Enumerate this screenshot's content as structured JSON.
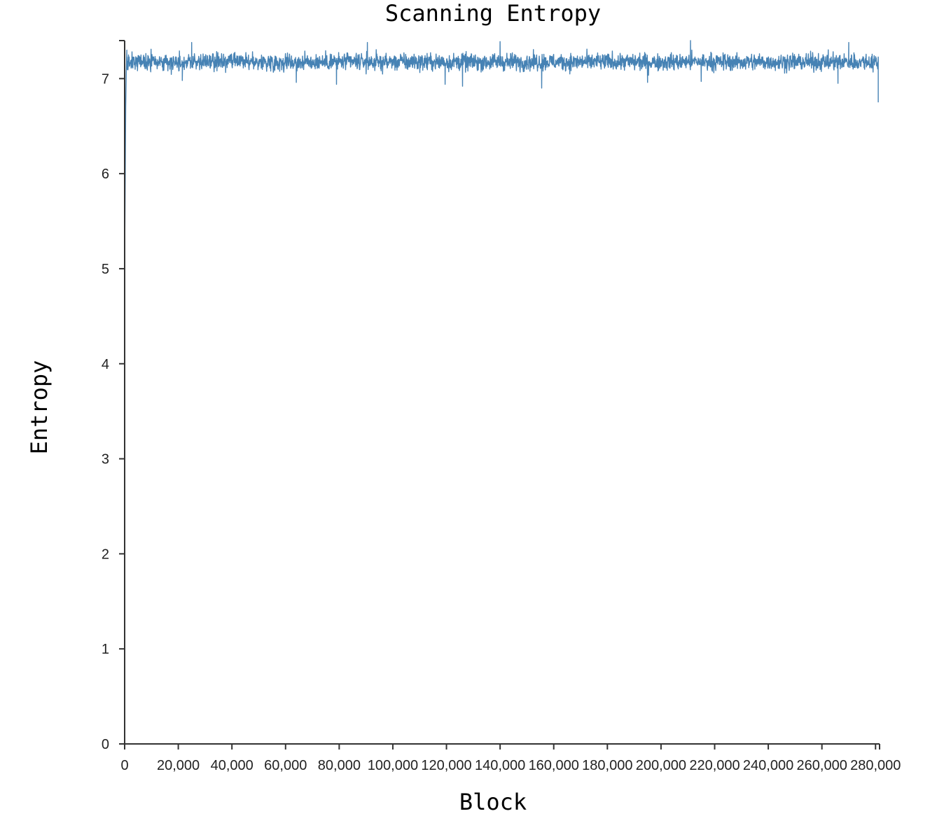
{
  "chart_data": {
    "type": "line",
    "title": "Scanning Entropy",
    "xlabel": "Block",
    "ylabel": "Entropy",
    "xlim": [
      0,
      281500
    ],
    "ylim": [
      0,
      7.4
    ],
    "x_ticks": [
      {
        "value": 0,
        "label": "0"
      },
      {
        "value": 20000,
        "label": "20,000"
      },
      {
        "value": 40000,
        "label": "40,000"
      },
      {
        "value": 60000,
        "label": "60,000"
      },
      {
        "value": 80000,
        "label": "80,000"
      },
      {
        "value": 100000,
        "label": "100,000"
      },
      {
        "value": 120000,
        "label": "120,000"
      },
      {
        "value": 140000,
        "label": "140,000"
      },
      {
        "value": 160000,
        "label": "160,000"
      },
      {
        "value": 180000,
        "label": "180,000"
      },
      {
        "value": 200000,
        "label": "200,000"
      },
      {
        "value": 220000,
        "label": "220,000"
      },
      {
        "value": 240000,
        "label": "240,000"
      },
      {
        "value": 260000,
        "label": "260,000"
      },
      {
        "value": 280000,
        "label": "280,000"
      }
    ],
    "y_ticks": [
      {
        "value": 0,
        "label": "0"
      },
      {
        "value": 1,
        "label": "1"
      },
      {
        "value": 2,
        "label": "2"
      },
      {
        "value": 3,
        "label": "3"
      },
      {
        "value": 4,
        "label": "4"
      },
      {
        "value": 5,
        "label": "5"
      },
      {
        "value": 6,
        "label": "6"
      },
      {
        "value": 7,
        "label": "7"
      }
    ],
    "grid": false,
    "series": [
      {
        "color": "#4682b4",
        "x_start": 0,
        "x_end": 281000,
        "mean": 7.16,
        "noise_range": [
          7.0,
          7.35
        ],
        "start_dip": [
          {
            "x": 0,
            "y": 5.05
          },
          {
            "x": 200,
            "y": 5.95
          },
          {
            "x": 400,
            "y": 6.7
          },
          {
            "x": 600,
            "y": 7.05
          },
          {
            "x": 800,
            "y": 7.3
          }
        ],
        "spikes_low": [
          {
            "x": 21500,
            "y": 6.98
          },
          {
            "x": 64000,
            "y": 6.96
          },
          {
            "x": 79000,
            "y": 6.94
          },
          {
            "x": 119500,
            "y": 6.94
          },
          {
            "x": 126000,
            "y": 6.92
          },
          {
            "x": 155500,
            "y": 6.9
          },
          {
            "x": 195000,
            "y": 6.96
          },
          {
            "x": 215000,
            "y": 6.97
          },
          {
            "x": 266000,
            "y": 6.95
          }
        ],
        "spikes_high": [
          {
            "x": 25000,
            "y": 7.38
          },
          {
            "x": 90500,
            "y": 7.38
          },
          {
            "x": 140000,
            "y": 7.39
          },
          {
            "x": 211000,
            "y": 7.4
          },
          {
            "x": 270000,
            "y": 7.38
          }
        ],
        "end_drop": {
          "x": 281000,
          "y": 6.75
        }
      }
    ]
  }
}
